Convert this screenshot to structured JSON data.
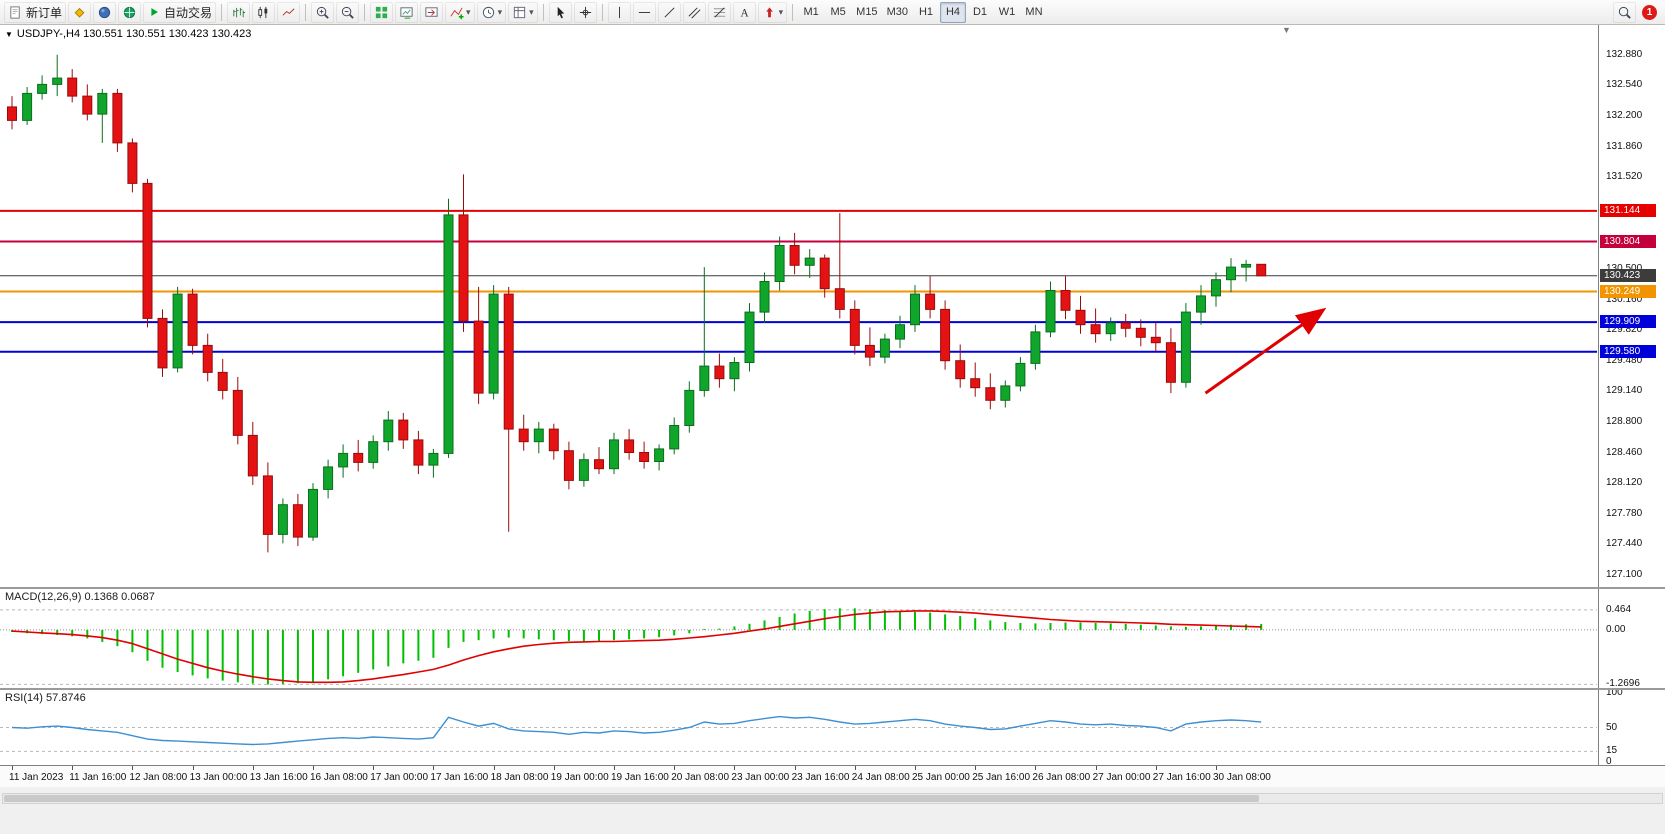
{
  "toolbar": {
    "new_order": "新订单",
    "auto_trading": "自动交易",
    "timeframes": [
      "M1",
      "M5",
      "M15",
      "M30",
      "H1",
      "H4",
      "D1",
      "W1",
      "MN"
    ],
    "active_timeframe": "H4",
    "notification_count": "1"
  },
  "glyphs": {
    "collapse": "▼",
    "caret": "▾",
    "shift_marker": "▼"
  },
  "chart_data": {
    "type": "candlestick",
    "symbol": "USDJPY-",
    "timeframe": "H4",
    "title": "USDJPY-,H4 130.551 130.551 130.423 130.423",
    "ohlc": {
      "open": "130.551",
      "high": "130.551",
      "low": "130.423",
      "close": "130.423"
    },
    "price_axis_labels": [
      "132.880",
      "132.540",
      "132.200",
      "131.860",
      "131.520",
      "130.500",
      "130.160",
      "129.820",
      "129.480",
      "129.140",
      "128.800",
      "128.460",
      "128.120",
      "127.780",
      "127.440",
      "127.100"
    ],
    "price_badges": [
      {
        "label": "131.144",
        "color": "#e60000"
      },
      {
        "label": "130.804",
        "color": "#c4003c"
      },
      {
        "label": "130.423",
        "color": "#3c3c3c"
      },
      {
        "label": "130.249",
        "color": "#f29400"
      },
      {
        "label": "129.909",
        "color": "#0000d8"
      },
      {
        "label": "129.580",
        "color": "#0000d8"
      }
    ],
    "hlines": [
      {
        "price": 131.144,
        "color": "#e60000",
        "width": 2
      },
      {
        "price": 130.804,
        "color": "#c4003c",
        "width": 2
      },
      {
        "price": 130.423,
        "color": "#3c3c3c",
        "width": 1
      },
      {
        "price": 130.249,
        "color": "#f29400",
        "width": 2
      },
      {
        "price": 129.909,
        "color": "#0000d8",
        "width": 2
      },
      {
        "price": 129.58,
        "color": "#0000d8",
        "width": 2
      }
    ],
    "trend_arrow": {
      "from": {
        "candle": 79.3,
        "price": 129.12
      },
      "to": {
        "candle": 87,
        "price": 130.03
      },
      "color": "#e10000"
    },
    "x_labels": [
      {
        "t": "11 Jan 2023",
        "i": 0
      },
      {
        "t": "11 Jan 16:00",
        "i": 4
      },
      {
        "t": "12 Jan 08:00",
        "i": 8
      },
      {
        "t": "13 Jan 00:00",
        "i": 12
      },
      {
        "t": "13 Jan 16:00",
        "i": 16
      },
      {
        "t": "16 Jan 08:00",
        "i": 20
      },
      {
        "t": "17 Jan 00:00",
        "i": 24
      },
      {
        "t": "17 Jan 16:00",
        "i": 28
      },
      {
        "t": "18 Jan 08:00",
        "i": 32
      },
      {
        "t": "19 Jan 00:00",
        "i": 36
      },
      {
        "t": "19 Jan 16:00",
        "i": 40
      },
      {
        "t": "20 Jan 08:00",
        "i": 44
      },
      {
        "t": "23 Jan 00:00",
        "i": 48
      },
      {
        "t": "23 Jan 16:00",
        "i": 52
      },
      {
        "t": "24 Jan 08:00",
        "i": 56
      },
      {
        "t": "25 Jan 00:00",
        "i": 60
      },
      {
        "t": "25 Jan 16:00",
        "i": 64
      },
      {
        "t": "26 Jan 08:00",
        "i": 68
      },
      {
        "t": "27 Jan 00:00",
        "i": 72
      },
      {
        "t": "27 Jan 16:00",
        "i": 76
      },
      {
        "t": "30 Jan 08:00",
        "i": 80
      }
    ],
    "candles": [
      [
        132.3,
        132.42,
        132.05,
        132.15
      ],
      [
        132.15,
        132.52,
        132.1,
        132.45
      ],
      [
        132.45,
        132.65,
        132.38,
        132.55
      ],
      [
        132.55,
        132.88,
        132.42,
        132.62
      ],
      [
        132.62,
        132.72,
        132.35,
        132.42
      ],
      [
        132.42,
        132.55,
        132.15,
        132.22
      ],
      [
        132.22,
        132.5,
        131.9,
        132.45
      ],
      [
        132.45,
        132.5,
        131.8,
        131.9
      ],
      [
        131.9,
        131.95,
        131.35,
        131.45
      ],
      [
        131.45,
        131.5,
        129.85,
        129.95
      ],
      [
        129.95,
        130.05,
        129.3,
        129.4
      ],
      [
        129.4,
        130.3,
        129.35,
        130.22
      ],
      [
        130.22,
        130.28,
        129.55,
        129.65
      ],
      [
        129.65,
        129.78,
        129.25,
        129.35
      ],
      [
        129.35,
        129.5,
        129.05,
        129.15
      ],
      [
        129.15,
        129.3,
        128.55,
        128.65
      ],
      [
        128.65,
        128.8,
        128.1,
        128.2
      ],
      [
        128.2,
        128.35,
        127.35,
        127.55
      ],
      [
        127.55,
        127.95,
        127.45,
        127.88
      ],
      [
        127.88,
        128.0,
        127.42,
        127.52
      ],
      [
        127.52,
        128.12,
        127.48,
        128.05
      ],
      [
        128.05,
        128.38,
        127.95,
        128.3
      ],
      [
        128.3,
        128.55,
        128.18,
        128.45
      ],
      [
        128.45,
        128.6,
        128.25,
        128.35
      ],
      [
        128.35,
        128.65,
        128.28,
        128.58
      ],
      [
        128.58,
        128.92,
        128.48,
        128.82
      ],
      [
        128.82,
        128.9,
        128.5,
        128.6
      ],
      [
        128.6,
        128.7,
        128.22,
        128.32
      ],
      [
        128.32,
        128.5,
        128.18,
        128.45
      ],
      [
        128.45,
        131.28,
        128.4,
        131.1
      ],
      [
        131.1,
        131.55,
        129.8,
        129.92
      ],
      [
        129.92,
        130.3,
        129.0,
        129.12
      ],
      [
        129.12,
        130.32,
        129.05,
        130.22
      ],
      [
        130.22,
        130.3,
        127.58,
        128.72
      ],
      [
        128.72,
        128.88,
        128.48,
        128.58
      ],
      [
        128.58,
        128.8,
        128.45,
        128.72
      ],
      [
        128.72,
        128.78,
        128.38,
        128.48
      ],
      [
        128.48,
        128.58,
        128.05,
        128.15
      ],
      [
        128.15,
        128.45,
        128.08,
        128.38
      ],
      [
        128.38,
        128.52,
        128.22,
        128.28
      ],
      [
        128.28,
        128.68,
        128.22,
        128.6
      ],
      [
        128.6,
        128.72,
        128.38,
        128.46
      ],
      [
        128.46,
        128.58,
        128.28,
        128.36
      ],
      [
        128.36,
        128.55,
        128.26,
        128.5
      ],
      [
        128.5,
        128.85,
        128.44,
        128.76
      ],
      [
        128.76,
        129.25,
        128.68,
        129.15
      ],
      [
        129.15,
        130.52,
        129.08,
        129.42
      ],
      [
        129.42,
        129.56,
        129.18,
        129.28
      ],
      [
        129.28,
        129.52,
        129.14,
        129.46
      ],
      [
        129.46,
        130.12,
        129.36,
        130.02
      ],
      [
        130.02,
        130.46,
        129.9,
        130.36
      ],
      [
        130.36,
        130.86,
        130.26,
        130.76
      ],
      [
        130.76,
        130.9,
        130.44,
        130.54
      ],
      [
        130.54,
        130.72,
        130.4,
        130.62
      ],
      [
        130.62,
        130.66,
        130.18,
        130.28
      ],
      [
        130.28,
        131.12,
        129.95,
        130.05
      ],
      [
        130.05,
        130.15,
        129.55,
        129.65
      ],
      [
        129.65,
        129.85,
        129.42,
        129.52
      ],
      [
        129.52,
        129.78,
        129.45,
        129.72
      ],
      [
        129.72,
        129.98,
        129.62,
        129.88
      ],
      [
        129.88,
        130.32,
        129.8,
        130.22
      ],
      [
        130.22,
        130.42,
        129.95,
        130.05
      ],
      [
        130.05,
        130.15,
        129.38,
        129.48
      ],
      [
        129.48,
        129.66,
        129.18,
        129.28
      ],
      [
        129.28,
        129.46,
        129.08,
        129.18
      ],
      [
        129.18,
        129.34,
        128.94,
        129.04
      ],
      [
        129.04,
        129.26,
        128.96,
        129.2
      ],
      [
        129.2,
        129.52,
        129.14,
        129.45
      ],
      [
        129.45,
        129.88,
        129.38,
        129.8
      ],
      [
        129.8,
        130.36,
        129.74,
        130.26
      ],
      [
        130.26,
        130.42,
        129.94,
        130.04
      ],
      [
        130.04,
        130.2,
        129.78,
        129.88
      ],
      [
        129.88,
        130.06,
        129.68,
        129.78
      ],
      [
        129.78,
        129.96,
        129.7,
        129.9
      ],
      [
        129.9,
        130.0,
        129.74,
        129.84
      ],
      [
        129.84,
        129.94,
        129.64,
        129.74
      ],
      [
        129.74,
        129.9,
        129.58,
        129.68
      ],
      [
        129.68,
        129.84,
        129.12,
        129.24
      ],
      [
        129.24,
        130.12,
        129.18,
        130.02
      ],
      [
        130.02,
        130.32,
        129.88,
        130.2
      ],
      [
        130.2,
        130.46,
        130.08,
        130.38
      ],
      [
        130.38,
        130.62,
        130.24,
        130.52
      ],
      [
        130.52,
        130.6,
        130.36,
        130.55
      ],
      [
        130.551,
        130.551,
        130.423,
        130.423
      ]
    ],
    "macd": {
      "name": "MACD(12,26,9)",
      "values_text": "0.1368 0.0687",
      "scale_labels": [
        "0.464",
        "0.00",
        "-1.2696"
      ],
      "hist_color": "#00c000",
      "signal_color": "#e10000",
      "histogram": [
        -0.05,
        -0.08,
        -0.1,
        -0.12,
        -0.15,
        -0.2,
        -0.28,
        -0.38,
        -0.52,
        -0.72,
        -0.88,
        -0.98,
        -1.06,
        -1.13,
        -1.18,
        -1.22,
        -1.25,
        -1.27,
        -1.26,
        -1.24,
        -1.2,
        -1.15,
        -1.08,
        -1.0,
        -0.92,
        -0.85,
        -0.78,
        -0.72,
        -0.65,
        -0.42,
        -0.28,
        -0.24,
        -0.2,
        -0.18,
        -0.2,
        -0.22,
        -0.24,
        -0.26,
        -0.27,
        -0.26,
        -0.24,
        -0.22,
        -0.2,
        -0.17,
        -0.13,
        -0.08,
        -0.02,
        0.03,
        0.08,
        0.14,
        0.22,
        0.3,
        0.38,
        0.44,
        0.48,
        0.5,
        0.5,
        0.48,
        0.46,
        0.44,
        0.42,
        0.4,
        0.36,
        0.32,
        0.27,
        0.22,
        0.18,
        0.16,
        0.15,
        0.16,
        0.17,
        0.17,
        0.16,
        0.15,
        0.14,
        0.12,
        0.1,
        0.08,
        0.07,
        0.08,
        0.1,
        0.12,
        0.13,
        0.1368
      ],
      "signal": [
        -0.03,
        -0.05,
        -0.07,
        -0.09,
        -0.11,
        -0.14,
        -0.18,
        -0.24,
        -0.32,
        -0.44,
        -0.56,
        -0.68,
        -0.78,
        -0.88,
        -0.96,
        -1.03,
        -1.09,
        -1.14,
        -1.18,
        -1.21,
        -1.22,
        -1.22,
        -1.21,
        -1.18,
        -1.14,
        -1.09,
        -1.04,
        -0.98,
        -0.92,
        -0.82,
        -0.7,
        -0.6,
        -0.51,
        -0.44,
        -0.38,
        -0.34,
        -0.31,
        -0.29,
        -0.28,
        -0.27,
        -0.27,
        -0.26,
        -0.25,
        -0.24,
        -0.22,
        -0.19,
        -0.16,
        -0.12,
        -0.08,
        -0.03,
        0.02,
        0.08,
        0.14,
        0.2,
        0.26,
        0.31,
        0.36,
        0.39,
        0.42,
        0.43,
        0.44,
        0.44,
        0.43,
        0.41,
        0.39,
        0.36,
        0.33,
        0.3,
        0.27,
        0.24,
        0.22,
        0.2,
        0.19,
        0.18,
        0.17,
        0.16,
        0.15,
        0.13,
        0.12,
        0.11,
        0.1,
        0.09,
        0.08,
        0.0687
      ]
    },
    "rsi": {
      "name": "RSI(14)",
      "value_text": "57.8746",
      "scale_labels": [
        "100",
        "50",
        "15",
        "0"
      ],
      "levels_dashed": [
        50,
        15
      ],
      "color": "#3f8fd0",
      "values": [
        50,
        49,
        51,
        52,
        50,
        47,
        45,
        43,
        38,
        33,
        31,
        30,
        29,
        28,
        27,
        26,
        25,
        26,
        28,
        30,
        32,
        34,
        35,
        34,
        36,
        35,
        34,
        33,
        35,
        65,
        58,
        52,
        56,
        48,
        45,
        44,
        43,
        40,
        43,
        42,
        45,
        44,
        42,
        43,
        46,
        50,
        58,
        55,
        56,
        60,
        63,
        66,
        64,
        65,
        62,
        58,
        55,
        56,
        58,
        60,
        62,
        60,
        55,
        52,
        50,
        47,
        48,
        52,
        56,
        60,
        58,
        55,
        54,
        55,
        53,
        52,
        50,
        45,
        55,
        58,
        60,
        61,
        60,
        57.87
      ]
    }
  }
}
